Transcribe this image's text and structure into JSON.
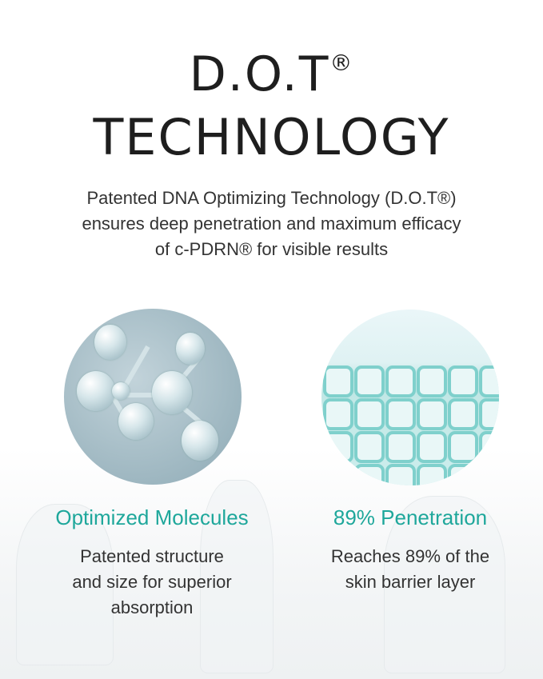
{
  "heading": {
    "line1": "D.O.T",
    "reg": "®",
    "line2": "TECHNOLOGY"
  },
  "subtitle": [
    "Patented DNA Optimizing Technology (D.O.T®)",
    "ensures deep penetration and maximum efficacy",
    "of c-PDRN®  for visible results"
  ],
  "features": [
    {
      "title": "Optimized Molecules",
      "desc": [
        "Patented structure",
        "and size for superior",
        "absorption"
      ],
      "image": "molecule-illustration"
    },
    {
      "title": "89% Penetration",
      "desc": [
        "Reaches 89% of the",
        "skin barrier layer"
      ],
      "image": "skin-cell-grid-illustration"
    }
  ],
  "colors": {
    "accent": "#1ea79b",
    "text": "#1e1e1e"
  }
}
